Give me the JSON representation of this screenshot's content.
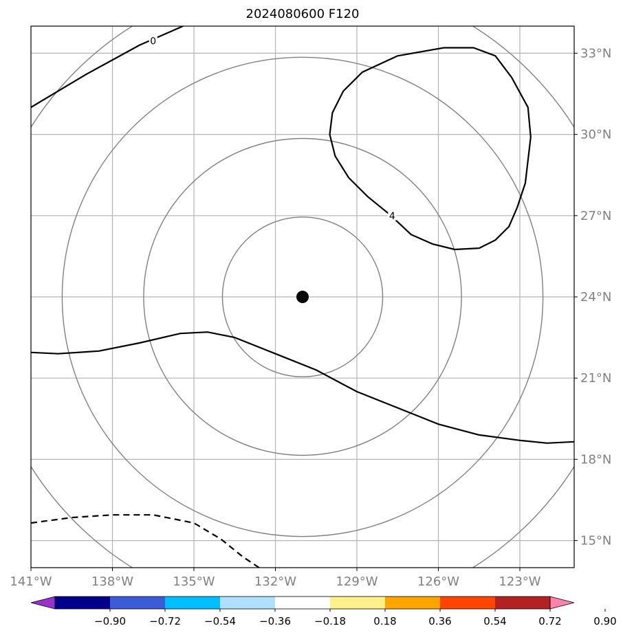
{
  "chart_data": {
    "type": "contour-map",
    "title": "2024080600 F120",
    "x_label": "",
    "y_label": "",
    "lon_range": [
      -141,
      -121
    ],
    "lat_range": [
      14,
      34
    ],
    "lon_ticks": [
      {
        "value": -141,
        "label": "141°W"
      },
      {
        "value": -138,
        "label": "138°W"
      },
      {
        "value": -135,
        "label": "135°W"
      },
      {
        "value": -132,
        "label": "132°W"
      },
      {
        "value": -129,
        "label": "129°W"
      },
      {
        "value": -126,
        "label": "126°W"
      },
      {
        "value": -123,
        "label": "123°W"
      }
    ],
    "lat_ticks": [
      {
        "value": 15,
        "label": "15°N"
      },
      {
        "value": 18,
        "label": "18°N"
      },
      {
        "value": 21,
        "label": "21°N"
      },
      {
        "value": 24,
        "label": "24°N"
      },
      {
        "value": 27,
        "label": "27°N"
      },
      {
        "value": 30,
        "label": "30°N"
      },
      {
        "value": 33,
        "label": "33°N"
      }
    ],
    "center": {
      "lon": -131,
      "lat": 24
    },
    "range_rings_deg": [
      2.95,
      5.85,
      8.85,
      11.8
    ],
    "contours": [
      {
        "name": "contour-0",
        "label": "0",
        "style": "solid",
        "label_at": {
          "lon": -136.5,
          "lat": 33.45
        },
        "points": [
          [
            -141,
            31.0
          ],
          [
            -139,
            32.2
          ],
          [
            -137,
            33.3
          ],
          [
            -135.4,
            34.0
          ]
        ]
      },
      {
        "name": "contour-4",
        "label": "4",
        "style": "solid",
        "label_at": {
          "lon": -127.7,
          "lat": 27.0
        },
        "points": [
          [
            -127.8,
            27.05
          ],
          [
            -128.6,
            27.7
          ],
          [
            -129.3,
            28.4
          ],
          [
            -129.8,
            29.2
          ],
          [
            -130.0,
            30.0
          ],
          [
            -129.9,
            30.8
          ],
          [
            -129.5,
            31.6
          ],
          [
            -128.8,
            32.3
          ],
          [
            -127.5,
            32.9
          ],
          [
            -125.8,
            33.2
          ],
          [
            -124.7,
            33.2
          ],
          [
            -123.9,
            32.9
          ],
          [
            -123.3,
            32.1
          ],
          [
            -122.7,
            31.0
          ],
          [
            -122.6,
            29.9
          ],
          [
            -122.8,
            28.2
          ],
          [
            -123.1,
            27.3
          ],
          [
            -123.4,
            26.6
          ],
          [
            -123.9,
            26.1
          ],
          [
            -124.5,
            25.8
          ],
          [
            -125.4,
            25.75
          ],
          [
            -126.2,
            25.95
          ],
          [
            -127.0,
            26.3
          ],
          [
            -127.8,
            27.05
          ]
        ]
      },
      {
        "name": "contour-lower",
        "label": "",
        "style": "solid",
        "points": [
          [
            -141,
            21.95
          ],
          [
            -140,
            21.9
          ],
          [
            -138.5,
            22.0
          ],
          [
            -137,
            22.3
          ],
          [
            -135.5,
            22.65
          ],
          [
            -134.5,
            22.7
          ],
          [
            -133.5,
            22.5
          ],
          [
            -132,
            21.9
          ],
          [
            -130.5,
            21.3
          ],
          [
            -129,
            20.5
          ],
          [
            -127.5,
            19.9
          ],
          [
            -126,
            19.3
          ],
          [
            -124.5,
            18.9
          ],
          [
            -123,
            18.7
          ],
          [
            -122,
            18.6
          ],
          [
            -121,
            18.65
          ]
        ]
      },
      {
        "name": "contour-dashed",
        "label": "",
        "style": "dashed",
        "points": [
          [
            -141,
            15.65
          ],
          [
            -139.5,
            15.85
          ],
          [
            -138,
            15.95
          ],
          [
            -136.5,
            15.95
          ],
          [
            -135,
            15.65
          ],
          [
            -134,
            15.05
          ],
          [
            -133.2,
            14.4
          ],
          [
            -132.6,
            14.0
          ]
        ]
      }
    ],
    "colorbar": {
      "levels": [
        "-0.90",
        "-0.72",
        "-0.54",
        "-0.36",
        "-0.18",
        "0.18",
        "0.36",
        "0.54",
        "0.72",
        "0.90"
      ],
      "colors": [
        "#9932cc",
        "#00008b",
        "#3c5bd7",
        "#00bfff",
        "#b0e0ff",
        "#ffffff",
        "#fff08c",
        "#ffa500",
        "#ff4500",
        "#b22222",
        "#ff82ab"
      ],
      "extend": "both"
    }
  }
}
